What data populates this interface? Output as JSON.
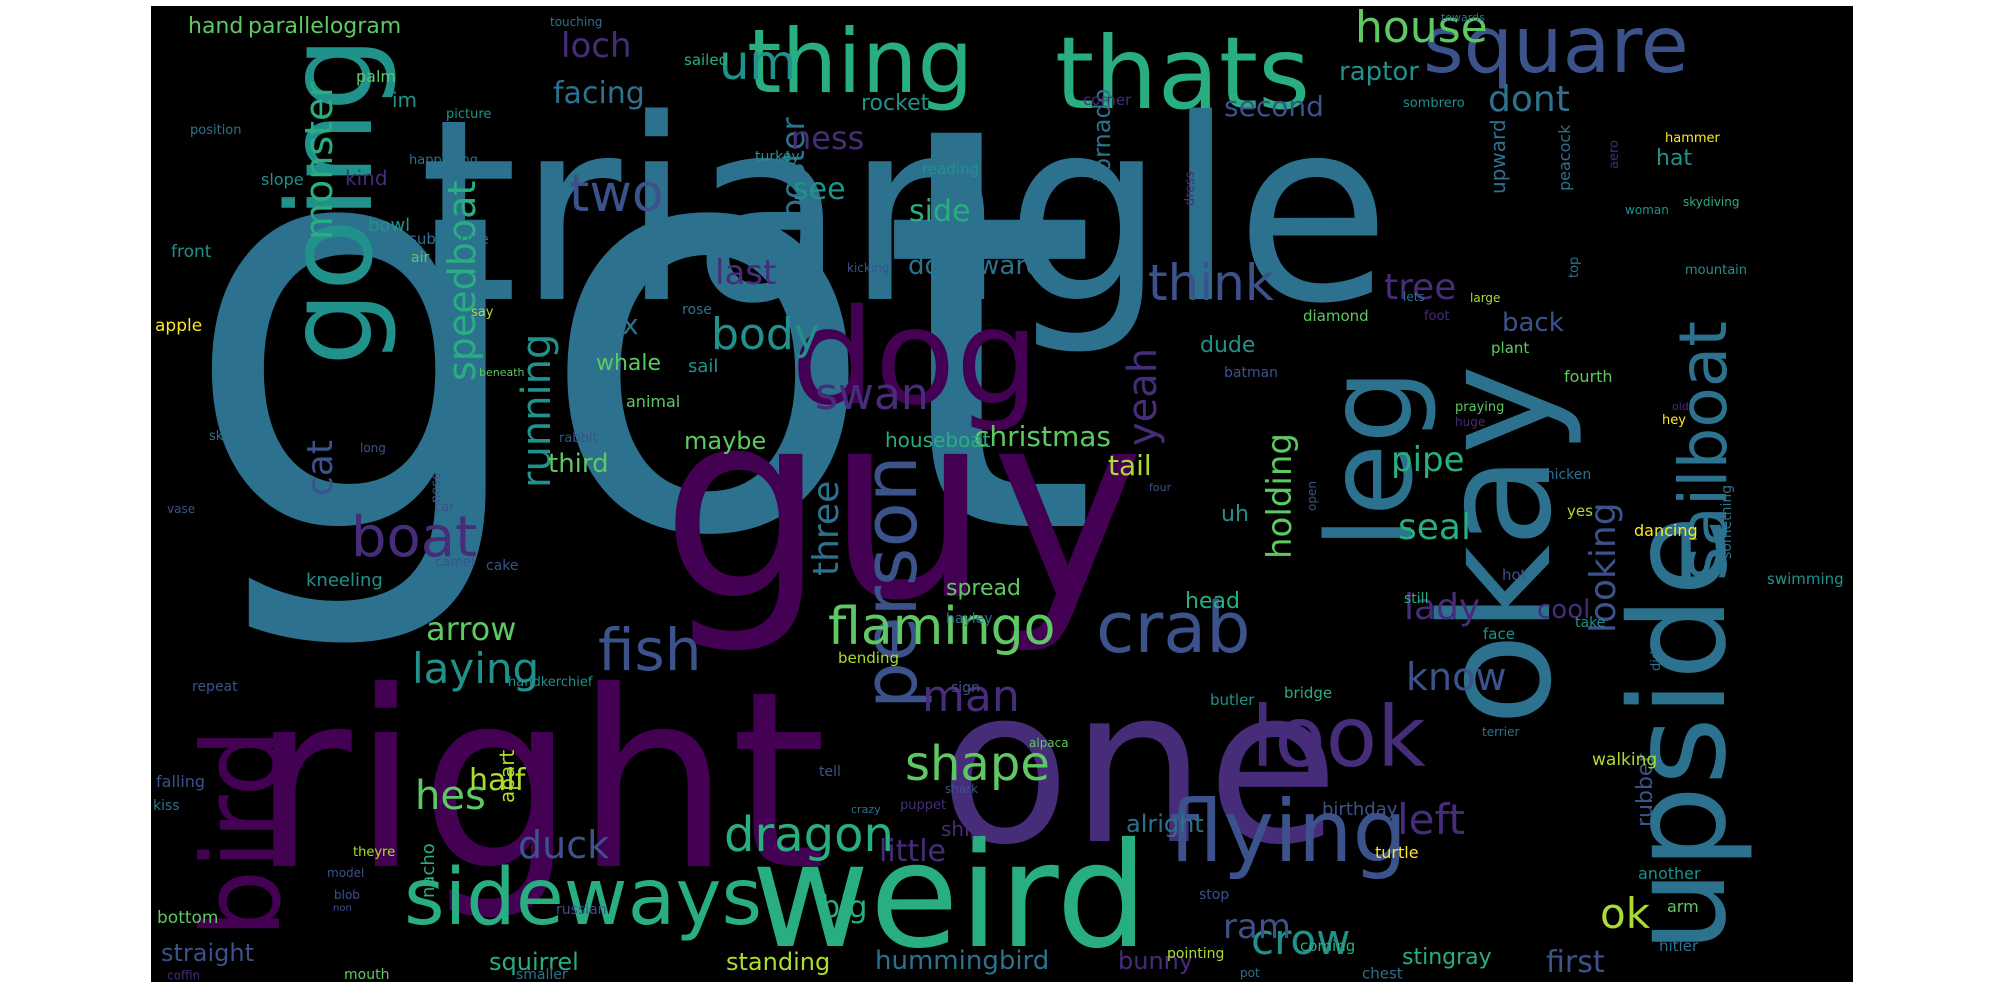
{
  "colors": {
    "background": "#000000",
    "page": "#ffffff",
    "palette": [
      "#440154",
      "#472c7a",
      "#3b528b",
      "#2c728e",
      "#21918c",
      "#28ae80",
      "#5ec962",
      "#addc30",
      "#fde725"
    ]
  },
  "words": [
    {
      "text": "got",
      "color": "#2c728e"
    },
    {
      "text": "triangle",
      "color": "#2c728e"
    },
    {
      "text": "guy",
      "color": "#440154"
    },
    {
      "text": "right",
      "color": "#440154"
    },
    {
      "text": "one",
      "color": "#472c7a"
    },
    {
      "text": "upside",
      "color": "#2c728e"
    },
    {
      "text": "okay",
      "color": "#2c728e"
    },
    {
      "text": "weird",
      "color": "#28ae80"
    },
    {
      "text": "going",
      "color": "#21918c"
    },
    {
      "text": "dog",
      "color": "#440154"
    },
    {
      "text": "leg",
      "color": "#2c728e"
    },
    {
      "text": "bird",
      "color": "#440154"
    },
    {
      "text": "thats",
      "color": "#28ae80"
    },
    {
      "text": "thing",
      "color": "#28ae80"
    },
    {
      "text": "square",
      "color": "#3b528b"
    },
    {
      "text": "sideways",
      "color": "#28ae80"
    },
    {
      "text": "flying",
      "color": "#3b528b"
    },
    {
      "text": "sailboat",
      "color": "#2c728e"
    },
    {
      "text": "look",
      "color": "#472c7a"
    },
    {
      "text": "person",
      "color": "#3b528b"
    },
    {
      "text": "crab",
      "color": "#3b528b"
    },
    {
      "text": "flamingo",
      "color": "#5ec962"
    },
    {
      "text": "fish",
      "color": "#3b528b"
    },
    {
      "text": "dragon",
      "color": "#28ae80"
    },
    {
      "text": "boat",
      "color": "#472c7a"
    },
    {
      "text": "two",
      "color": "#3b528b"
    },
    {
      "text": "um",
      "color": "#21918c"
    },
    {
      "text": "house",
      "color": "#5ec962"
    },
    {
      "text": "think",
      "color": "#3b528b"
    },
    {
      "text": "body",
      "color": "#21918c"
    },
    {
      "text": "shape",
      "color": "#5ec962"
    },
    {
      "text": "man",
      "color": "#472c7a"
    },
    {
      "text": "laying",
      "color": "#21918c"
    },
    {
      "text": "swan",
      "color": "#472c7a"
    },
    {
      "text": "crow",
      "color": "#21918c"
    },
    {
      "text": "ok",
      "color": "#addc30"
    },
    {
      "text": "hes",
      "color": "#5ec962"
    },
    {
      "text": "left",
      "color": "#472c7a"
    },
    {
      "text": "know",
      "color": "#3b528b"
    },
    {
      "text": "duck",
      "color": "#3b528b"
    },
    {
      "text": "running",
      "color": "#21918c"
    },
    {
      "text": "speedboat",
      "color": "#28ae80"
    },
    {
      "text": "monster",
      "color": "#28ae80"
    },
    {
      "text": "cat",
      "color": "#3b528b"
    },
    {
      "text": "yeah",
      "color": "#472c7a"
    },
    {
      "text": "three",
      "color": "#2c728e"
    },
    {
      "text": "rooster",
      "color": "#2c728e"
    },
    {
      "text": "holding",
      "color": "#5ec962"
    },
    {
      "text": "looking",
      "color": "#3b528b"
    },
    {
      "text": "lady",
      "color": "#472c7a"
    },
    {
      "text": "seal",
      "color": "#28ae80"
    },
    {
      "text": "tree",
      "color": "#472c7a"
    },
    {
      "text": "pipe",
      "color": "#28ae80"
    },
    {
      "text": "dont",
      "color": "#2c728e"
    },
    {
      "text": "loch",
      "color": "#472c7a"
    },
    {
      "text": "facing",
      "color": "#2c728e"
    },
    {
      "text": "ness",
      "color": "#472c7a"
    },
    {
      "text": "second",
      "color": "#3b528b"
    },
    {
      "text": "raptor",
      "color": "#21918c"
    },
    {
      "text": "arrow",
      "color": "#5ec962"
    },
    {
      "text": "half",
      "color": "#addc30"
    },
    {
      "text": "little",
      "color": "#472c7a"
    },
    {
      "text": "big",
      "color": "#28ae80"
    },
    {
      "text": "christmas",
      "color": "#5ec962"
    },
    {
      "text": "tail",
      "color": "#addc30"
    },
    {
      "text": "side",
      "color": "#28ae80"
    },
    {
      "text": "see",
      "color": "#21918c"
    },
    {
      "text": "last",
      "color": "#472c7a"
    },
    {
      "text": "fox",
      "color": "#2c728e"
    },
    {
      "text": "whale",
      "color": "#5ec962"
    },
    {
      "text": "third",
      "color": "#5ec962"
    },
    {
      "text": "maybe",
      "color": "#5ec962"
    },
    {
      "text": "downward",
      "color": "#2c728e"
    },
    {
      "text": "tornado",
      "color": "#2c728e"
    },
    {
      "text": "rocket",
      "color": "#21918c"
    },
    {
      "text": "squirrel",
      "color": "#28ae80"
    },
    {
      "text": "straight",
      "color": "#3b528b"
    },
    {
      "text": "standing",
      "color": "#addc30"
    },
    {
      "text": "hummingbird",
      "color": "#2c728e"
    },
    {
      "text": "bunny",
      "color": "#472c7a"
    },
    {
      "text": "ram",
      "color": "#3b528b"
    },
    {
      "text": "first",
      "color": "#3b528b"
    },
    {
      "text": "stingray",
      "color": "#28ae80"
    },
    {
      "text": "cool",
      "color": "#472c7a"
    },
    {
      "text": "rubber",
      "color": "#3b528b"
    },
    {
      "text": "back",
      "color": "#3b528b"
    },
    {
      "text": "dude",
      "color": "#21918c"
    },
    {
      "text": "uh",
      "color": "#21918c"
    },
    {
      "text": "head",
      "color": "#28ae80"
    },
    {
      "text": "spread",
      "color": "#5ec962"
    },
    {
      "text": "upward",
      "color": "#2c728e"
    },
    {
      "text": "hat",
      "color": "#21918c"
    },
    {
      "text": "hand",
      "color": "#5ec962"
    },
    {
      "text": "parallelogram",
      "color": "#5ec962"
    },
    {
      "text": "kind",
      "color": "#472c7a"
    },
    {
      "text": "im",
      "color": "#21918c"
    },
    {
      "text": "palm",
      "color": "#5ec962"
    },
    {
      "text": "apart",
      "color": "#addc30"
    },
    {
      "text": "nacho",
      "color": "#28ae80"
    },
    {
      "text": "ship",
      "color": "#472c7a"
    },
    {
      "text": "alright",
      "color": "#2c728e"
    },
    {
      "text": "houseboat",
      "color": "#28ae80"
    },
    {
      "text": "sail",
      "color": "#21918c"
    },
    {
      "text": "animal",
      "color": "#5ec962"
    },
    {
      "text": "kneeling",
      "color": "#21918c"
    },
    {
      "text": "front",
      "color": "#21918c"
    },
    {
      "text": "bowl",
      "color": "#21918c"
    },
    {
      "text": "submarine",
      "color": "#2c728e"
    },
    {
      "text": "apple",
      "color": "#fde725"
    },
    {
      "text": "air",
      "color": "#5ec962"
    },
    {
      "text": "rose",
      "color": "#2c728e"
    },
    {
      "text": "say",
      "color": "#addc30"
    },
    {
      "text": "slope",
      "color": "#21918c"
    },
    {
      "text": "position",
      "color": "#2c728e"
    },
    {
      "text": "picture",
      "color": "#21918c"
    },
    {
      "text": "turkey",
      "color": "#21918c"
    },
    {
      "text": "reading",
      "color": "#21918c"
    },
    {
      "text": "corner",
      "color": "#472c7a"
    },
    {
      "text": "sombrero",
      "color": "#21918c"
    },
    {
      "text": "sailed",
      "color": "#28ae80"
    },
    {
      "text": "touching",
      "color": "#2c728e"
    },
    {
      "text": "towards",
      "color": "#2c728e"
    },
    {
      "text": "peacock",
      "color": "#2c728e"
    },
    {
      "text": "hammer",
      "color": "#fde725"
    },
    {
      "text": "aero",
      "color": "#472c7a"
    },
    {
      "text": "woman",
      "color": "#21918c"
    },
    {
      "text": "skydiving",
      "color": "#28ae80"
    },
    {
      "text": "top",
      "color": "#2c728e"
    },
    {
      "text": "mountain",
      "color": "#21918c"
    },
    {
      "text": "large",
      "color": "#addc30"
    },
    {
      "text": "lets",
      "color": "#2c728e"
    },
    {
      "text": "foot",
      "color": "#472c7a"
    },
    {
      "text": "diamond",
      "color": "#5ec962"
    },
    {
      "text": "plant",
      "color": "#5ec962"
    },
    {
      "text": "batman",
      "color": "#3b528b"
    },
    {
      "text": "fourth",
      "color": "#5ec962"
    },
    {
      "text": "hey",
      "color": "#fde725"
    },
    {
      "text": "praying",
      "color": "#5ec962"
    },
    {
      "text": "old",
      "color": "#472c7a"
    },
    {
      "text": "huge",
      "color": "#472c7a"
    },
    {
      "text": "chicken",
      "color": "#2c728e"
    },
    {
      "text": "yes",
      "color": "#addc30"
    },
    {
      "text": "dancing",
      "color": "#fde725"
    },
    {
      "text": "something",
      "color": "#2c728e"
    },
    {
      "text": "hot",
      "color": "#3b528b"
    },
    {
      "text": "swimming",
      "color": "#21918c"
    },
    {
      "text": "still",
      "color": "#28ae80"
    },
    {
      "text": "face",
      "color": "#21918c"
    },
    {
      "text": "take",
      "color": "#21918c"
    },
    {
      "text": "didnt",
      "color": "#2c728e"
    },
    {
      "text": "bridge",
      "color": "#28ae80"
    },
    {
      "text": "butler",
      "color": "#21918c"
    },
    {
      "text": "terrier",
      "color": "#2c728e"
    },
    {
      "text": "walking",
      "color": "#addc30"
    },
    {
      "text": "birthday",
      "color": "#3b528b"
    },
    {
      "text": "turtle",
      "color": "#fde725"
    },
    {
      "text": "another",
      "color": "#21918c"
    },
    {
      "text": "arm",
      "color": "#5ec962"
    },
    {
      "text": "hitler",
      "color": "#2c728e"
    },
    {
      "text": "chest",
      "color": "#2c728e"
    },
    {
      "text": "coming",
      "color": "#28ae80"
    },
    {
      "text": "pointing",
      "color": "#addc30"
    },
    {
      "text": "pot",
      "color": "#2c728e"
    },
    {
      "text": "stop",
      "color": "#3b528b"
    },
    {
      "text": "smaller",
      "color": "#2c728e"
    },
    {
      "text": "mouth",
      "color": "#5ec962"
    },
    {
      "text": "coffin",
      "color": "#472c7a"
    },
    {
      "text": "bottom",
      "color": "#5ec962"
    },
    {
      "text": "model",
      "color": "#3b528b"
    },
    {
      "text": "blob",
      "color": "#3b528b"
    },
    {
      "text": "non",
      "color": "#3b528b"
    },
    {
      "text": "russian",
      "color": "#3b528b"
    },
    {
      "text": "theyre",
      "color": "#addc30"
    },
    {
      "text": "falling",
      "color": "#3b528b"
    },
    {
      "text": "kiss",
      "color": "#2c728e"
    },
    {
      "text": "repeat",
      "color": "#3b528b"
    },
    {
      "text": "handkerchief",
      "color": "#21918c"
    },
    {
      "text": "theres",
      "color": "#2c728e"
    },
    {
      "text": "camel",
      "color": "#3b528b"
    },
    {
      "text": "cake",
      "color": "#3b528b"
    },
    {
      "text": "car",
      "color": "#3b528b"
    },
    {
      "text": "nose",
      "color": "#3b528b"
    },
    {
      "text": "vase",
      "color": "#3b528b"
    },
    {
      "text": "skinny",
      "color": "#2c728e"
    },
    {
      "text": "long",
      "color": "#3b528b"
    },
    {
      "text": "rabbit",
      "color": "#3b528b"
    },
    {
      "text": "beneath",
      "color": "#5ec962"
    },
    {
      "text": "four",
      "color": "#3b528b"
    },
    {
      "text": "open",
      "color": "#3b528b"
    },
    {
      "text": "hayley",
      "color": "#2c728e"
    },
    {
      "text": "bending",
      "color": "#addc30"
    },
    {
      "text": "sign",
      "color": "#3b528b"
    },
    {
      "text": "kicking",
      "color": "#3b528b"
    },
    {
      "text": "dress",
      "color": "#472c7a"
    },
    {
      "text": "happening",
      "color": "#2c728e"
    },
    {
      "text": "shark",
      "color": "#3b528b"
    },
    {
      "text": "alpaca",
      "color": "#5ec962"
    },
    {
      "text": "puppet",
      "color": "#472c7a"
    },
    {
      "text": "crazy",
      "color": "#2c728e"
    },
    {
      "text": "tell",
      "color": "#3b528b"
    }
  ]
}
